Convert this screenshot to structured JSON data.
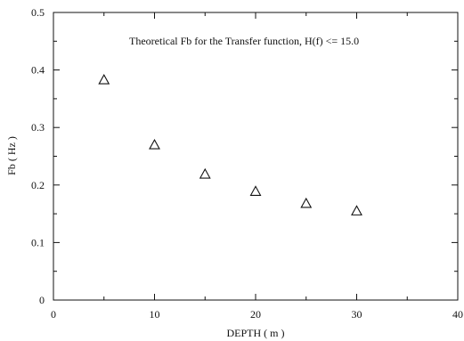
{
  "chart_data": {
    "type": "scatter",
    "title": "",
    "annotation": "Theoretical Fb for the Transfer function, H(f) <= 15.0",
    "xlabel": "DEPTH ( m )",
    "ylabel": "Fb ( Hz )",
    "xlim": [
      0,
      40
    ],
    "ylim": [
      0,
      0.5
    ],
    "x_ticks": [
      0,
      10,
      20,
      30,
      40
    ],
    "x_tick_labels": [
      "0",
      "10",
      "20",
      "30",
      "40"
    ],
    "y_ticks": [
      0,
      0.1,
      0.2,
      0.3,
      0.4,
      0.5
    ],
    "y_tick_labels": [
      "0",
      "0.1",
      "0.2",
      "0.3",
      "0.4",
      "0.5"
    ],
    "grid": false,
    "marker": "triangle-open",
    "series": [
      {
        "x": [
          5,
          10,
          15,
          20,
          25,
          30
        ],
        "y": [
          0.383,
          0.27,
          0.219,
          0.189,
          0.168,
          0.155
        ]
      }
    ]
  }
}
